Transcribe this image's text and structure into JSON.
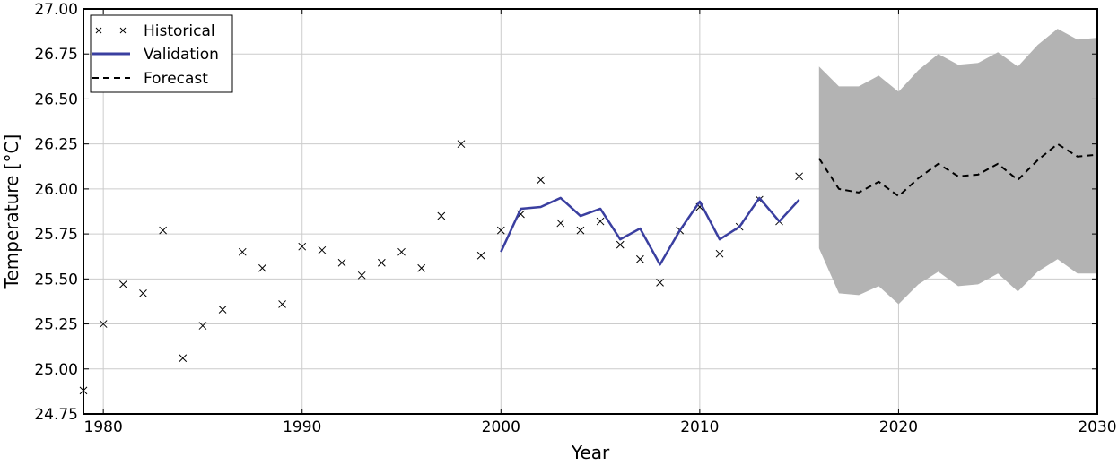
{
  "chart_data": {
    "type": "line",
    "xlabel": "Year",
    "ylabel": "Temperature [°C]",
    "xlim": [
      1979,
      2030
    ],
    "ylim": [
      24.75,
      27.0
    ],
    "xticks": [
      1980,
      1990,
      2000,
      2010,
      2020,
      2030
    ],
    "yticks": [
      24.75,
      25.0,
      25.25,
      25.5,
      25.75,
      26.0,
      26.25,
      26.5,
      26.75,
      27.0
    ],
    "ytick_labels": [
      "24.75",
      "25.00",
      "25.25",
      "25.50",
      "25.75",
      "26.00",
      "26.25",
      "26.50",
      "26.75",
      "27.00"
    ],
    "grid": true,
    "legend_position": "top-left",
    "series": [
      {
        "name": "Historical",
        "style": "x-markers",
        "color": "#000000",
        "x": [
          1979,
          1980,
          1981,
          1982,
          1983,
          1984,
          1985,
          1986,
          1987,
          1988,
          1989,
          1990,
          1991,
          1992,
          1993,
          1994,
          1995,
          1996,
          1997,
          1998,
          1999,
          2000,
          2001,
          2002,
          2003,
          2004,
          2005,
          2006,
          2007,
          2008,
          2009,
          2010,
          2011,
          2012,
          2013,
          2014,
          2015
        ],
        "y": [
          24.88,
          25.25,
          25.47,
          25.42,
          25.77,
          25.06,
          25.24,
          25.33,
          25.65,
          25.56,
          25.36,
          25.68,
          25.66,
          25.59,
          25.52,
          25.59,
          25.65,
          25.56,
          25.85,
          26.25,
          25.63,
          25.77,
          25.86,
          26.05,
          25.81,
          25.77,
          25.82,
          25.69,
          25.61,
          25.48,
          25.77,
          25.9,
          25.64,
          25.79,
          25.94,
          25.82,
          26.07
        ]
      },
      {
        "name": "Validation",
        "style": "solid",
        "color": "#3a3fa0",
        "x": [
          2000,
          2001,
          2002,
          2003,
          2004,
          2005,
          2006,
          2007,
          2008,
          2009,
          2010,
          2011,
          2012,
          2013,
          2014,
          2015
        ],
        "y": [
          25.65,
          25.89,
          25.9,
          25.95,
          25.85,
          25.89,
          25.72,
          25.78,
          25.58,
          25.77,
          25.93,
          25.72,
          25.79,
          25.95,
          25.82,
          25.94
        ]
      },
      {
        "name": "Forecast",
        "style": "dashed",
        "color": "#000000",
        "x": [
          2016,
          2017,
          2018,
          2019,
          2020,
          2021,
          2022,
          2023,
          2024,
          2025,
          2026,
          2027,
          2028,
          2029,
          2030
        ],
        "y": [
          26.17,
          26.0,
          25.98,
          26.04,
          25.96,
          26.06,
          26.14,
          26.07,
          26.08,
          26.14,
          26.05,
          26.16,
          26.25,
          26.18,
          26.19
        ]
      }
    ],
    "confidence_band": {
      "color": "#b3b3b3",
      "x": [
        2016,
        2017,
        2018,
        2019,
        2020,
        2021,
        2022,
        2023,
        2024,
        2025,
        2026,
        2027,
        2028,
        2029,
        2030
      ],
      "upper": [
        26.68,
        26.57,
        26.57,
        26.63,
        26.54,
        26.66,
        26.75,
        26.69,
        26.7,
        26.76,
        26.68,
        26.8,
        26.89,
        26.83,
        26.84
      ],
      "lower": [
        25.67,
        25.42,
        25.41,
        25.46,
        25.36,
        25.47,
        25.54,
        25.46,
        25.47,
        25.53,
        25.43,
        25.54,
        25.61,
        25.53,
        25.53
      ]
    }
  }
}
